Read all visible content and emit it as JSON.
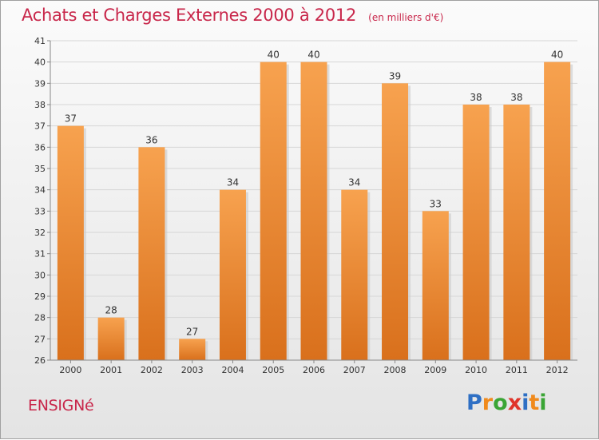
{
  "chart_data": {
    "type": "bar",
    "title": "Achats et Charges Externes 2000 à 2012",
    "subtitle": "(en milliers d'€)",
    "categories": [
      "2000",
      "2001",
      "2002",
      "2003",
      "2004",
      "2005",
      "2006",
      "2007",
      "2008",
      "2009",
      "2010",
      "2011",
      "2012"
    ],
    "values": [
      37,
      28,
      36,
      27,
      34,
      40,
      40,
      34,
      39,
      33,
      38,
      38,
      40
    ],
    "y_ticks": [
      "26",
      "27",
      "28",
      "29",
      "30",
      "31",
      "32",
      "33",
      "34",
      "35",
      "36",
      "37",
      "38",
      "39",
      "40",
      "41"
    ],
    "ylim": [
      26,
      41
    ],
    "grid": "horizontal",
    "bar_color": "#f0913a"
  },
  "footer": {
    "commune": "ENSIGNé",
    "logo_letters": [
      "P",
      "r",
      "o",
      "x",
      "i",
      "t",
      "i"
    ],
    "logo_colors": [
      "#2e6fc4",
      "#f08a1c",
      "#3aa535",
      "#e0342a",
      "#2e6fc4",
      "#f08a1c",
      "#3aa535"
    ]
  }
}
